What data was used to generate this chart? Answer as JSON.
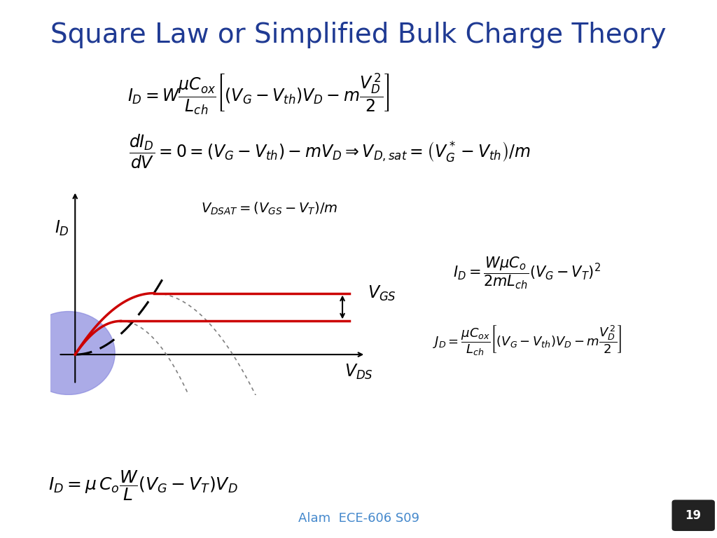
{
  "title": "Square Law or Simplified Bulk Charge Theory",
  "title_color": "#1F3A93",
  "title_fontsize": 28,
  "bg_color": "#FFFFFF",
  "border_color": "#AAAAAA",
  "slide_number": "19",
  "footer": "Alam  ECE-606 S09",
  "footer_color": "#4488CC",
  "eq1": "$I_D = W\\dfrac{\\mu C_{ox}}{L_{ch}}\\left[(V_G - V_{th})V_D - m\\dfrac{V_D^{\\,2}}{2}\\right]$",
  "eq2": "$\\dfrac{dI_D}{dV} = 0 = (V_G - V_{th}) - mV_D \\Rightarrow V_{D,sat} = \\left(V_G^* - V_{th}\\right)/m$",
  "eq3": "$V_{DSAT} = (V_{GS} - V_T)/ m$",
  "eq4": "$I_D = \\dfrac{W\\mu C_o}{2mL_{ch}}(V_G - V_T)^2$",
  "eq5": "$J_D = \\dfrac{\\mu C_{ox}}{L_{ch}}\\left[(V_G - V_{th})V_D - m\\dfrac{V_D^{\\,2}}{2}\\right]$",
  "eq6": "$I_D = \\mu\\, C_o\\dfrac{W}{L}(V_G - V_T)V_D$",
  "label_ID": "$I_D$",
  "label_VDS": "$V_{DS}$",
  "label_VGS": "$V_{GS}$",
  "circle_color": "#8888DD",
  "circle_alpha": 0.7,
  "curve1_color": "#CC0000",
  "curve2_color": "#CC0000",
  "dashed_line_color": "#CC0000",
  "arrow_color": "#000000",
  "Vsat1": 0.95,
  "A1": 1.65,
  "Vsat2": 0.55,
  "A2": 0.9
}
